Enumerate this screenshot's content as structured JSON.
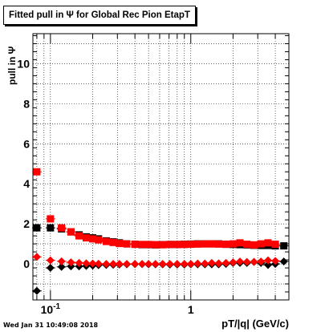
{
  "chart_data": {
    "type": "scatter",
    "title": "Fitted pull in  Ψ  for Global Rec Pion EtapT",
    "xlabel": "pT/|q| (GeV/c)",
    "ylabel": "pull in  Ψ",
    "x_scale": "log",
    "xlim": [
      0.075,
      5.0
    ],
    "ylim": [
      -1.8,
      11.5
    ],
    "grid": true,
    "y_ticks": [
      0,
      2,
      4,
      6,
      8,
      10
    ],
    "x_tick_labels": [
      {
        "value": 0.1,
        "label": "10",
        "exponent": "-1"
      },
      {
        "value": 1,
        "label": "1",
        "exponent": ""
      }
    ],
    "series": [
      {
        "color": "#000000",
        "marker_mean": "square",
        "marker_sigma": "diamond",
        "mean_points": [
          [
            0.08,
            1.8
          ],
          [
            0.1,
            1.8
          ],
          [
            0.12,
            1.75
          ],
          [
            0.14,
            1.6
          ],
          [
            0.16,
            1.45
          ],
          [
            0.18,
            1.35
          ],
          [
            0.2,
            1.3
          ],
          [
            0.22,
            1.25
          ],
          [
            0.25,
            1.15
          ],
          [
            0.28,
            1.1
          ],
          [
            0.31,
            1.05
          ],
          [
            0.35,
            1.0
          ],
          [
            0.4,
            0.98
          ],
          [
            0.45,
            0.96
          ],
          [
            0.5,
            0.96
          ],
          [
            0.56,
            0.95
          ],
          [
            0.63,
            0.96
          ],
          [
            0.71,
            0.97
          ],
          [
            0.8,
            0.97
          ],
          [
            0.9,
            0.98
          ],
          [
            1.0,
            0.99
          ],
          [
            1.12,
            1.0
          ],
          [
            1.26,
            1.0
          ],
          [
            1.41,
            1.0
          ],
          [
            1.58,
            1.0
          ],
          [
            1.78,
            0.98
          ],
          [
            2.0,
            0.97
          ],
          [
            2.24,
            0.96
          ],
          [
            2.51,
            0.95
          ],
          [
            2.82,
            0.93
          ],
          [
            3.16,
            0.92
          ],
          [
            3.55,
            0.92
          ],
          [
            4.0,
            0.9
          ],
          [
            4.6,
            0.9
          ]
        ],
        "sigma_points": [
          [
            0.08,
            -1.35
          ],
          [
            0.1,
            -0.2
          ],
          [
            0.12,
            -0.15
          ],
          [
            0.14,
            -0.12
          ],
          [
            0.16,
            -0.12
          ],
          [
            0.18,
            -0.1
          ],
          [
            0.2,
            -0.08
          ],
          [
            0.22,
            -0.06
          ],
          [
            0.25,
            -0.05
          ],
          [
            0.28,
            -0.04
          ],
          [
            0.31,
            -0.03
          ],
          [
            0.35,
            -0.02
          ],
          [
            0.4,
            -0.01
          ],
          [
            0.45,
            -0.01
          ],
          [
            0.5,
            -0.02
          ],
          [
            0.56,
            -0.02
          ],
          [
            0.63,
            -0.02
          ],
          [
            0.71,
            -0.03
          ],
          [
            0.8,
            -0.03
          ],
          [
            0.9,
            -0.03
          ],
          [
            1.0,
            -0.02
          ],
          [
            1.12,
            -0.02
          ],
          [
            1.26,
            -0.02
          ],
          [
            1.41,
            -0.02
          ],
          [
            1.58,
            -0.02
          ],
          [
            1.78,
            0.0
          ],
          [
            2.0,
            0.05
          ],
          [
            2.24,
            0.05
          ],
          [
            2.51,
            0.05
          ],
          [
            2.82,
            0.1
          ],
          [
            3.16,
            0.05
          ],
          [
            3.55,
            -0.05
          ],
          [
            4.0,
            0.0
          ],
          [
            4.6,
            0.12
          ]
        ]
      },
      {
        "color": "#ff0000",
        "marker_mean": "square",
        "marker_sigma": "diamond",
        "mean_points": [
          [
            0.08,
            4.6
          ],
          [
            0.1,
            2.25
          ],
          [
            0.12,
            1.8
          ],
          [
            0.14,
            1.6
          ],
          [
            0.16,
            1.4
          ],
          [
            0.18,
            1.3
          ],
          [
            0.2,
            1.25
          ],
          [
            0.22,
            1.2
          ],
          [
            0.25,
            1.12
          ],
          [
            0.28,
            1.07
          ],
          [
            0.31,
            1.02
          ],
          [
            0.35,
            1.0
          ],
          [
            0.4,
            0.98
          ],
          [
            0.45,
            0.97
          ],
          [
            0.5,
            0.97
          ],
          [
            0.56,
            0.96
          ],
          [
            0.63,
            0.96
          ],
          [
            0.71,
            0.97
          ],
          [
            0.8,
            0.97
          ],
          [
            0.9,
            0.97
          ],
          [
            1.0,
            0.98
          ],
          [
            1.12,
            0.99
          ],
          [
            1.26,
            1.0
          ],
          [
            1.41,
            1.0
          ],
          [
            1.58,
            0.99
          ],
          [
            1.78,
            0.98
          ],
          [
            2.0,
            1.0
          ],
          [
            2.24,
            1.05
          ],
          [
            2.51,
            0.98
          ],
          [
            2.82,
            0.95
          ],
          [
            3.16,
            1.0
          ],
          [
            3.55,
            1.05
          ],
          [
            4.0,
            0.98
          ]
        ],
        "sigma_points": [
          [
            0.08,
            0.35
          ],
          [
            0.1,
            0.18
          ],
          [
            0.12,
            0.13
          ],
          [
            0.14,
            0.08
          ],
          [
            0.16,
            0.05
          ],
          [
            0.18,
            0.03
          ],
          [
            0.2,
            0.02
          ],
          [
            0.22,
            0.01
          ],
          [
            0.25,
            0.0
          ],
          [
            0.28,
            0.0
          ],
          [
            0.31,
            0.0
          ],
          [
            0.35,
            0.0
          ],
          [
            0.4,
            0.0
          ],
          [
            0.45,
            0.0
          ],
          [
            0.5,
            0.0
          ],
          [
            0.56,
            0.0
          ],
          [
            0.63,
            0.0
          ],
          [
            0.71,
            0.0
          ],
          [
            0.8,
            0.0
          ],
          [
            0.9,
            0.0
          ],
          [
            1.0,
            0.0
          ],
          [
            1.12,
            0.02
          ],
          [
            1.26,
            0.02
          ],
          [
            1.41,
            0.05
          ],
          [
            1.58,
            0.03
          ],
          [
            1.78,
            0.05
          ],
          [
            2.0,
            0.08
          ],
          [
            2.24,
            0.12
          ],
          [
            2.51,
            0.1
          ],
          [
            2.82,
            0.1
          ],
          [
            3.16,
            0.12
          ],
          [
            3.55,
            0.18
          ],
          [
            4.0,
            0.15
          ]
        ]
      }
    ]
  },
  "footer": {
    "timestamp": "Wed Jan 31 10:49:08 2018"
  }
}
